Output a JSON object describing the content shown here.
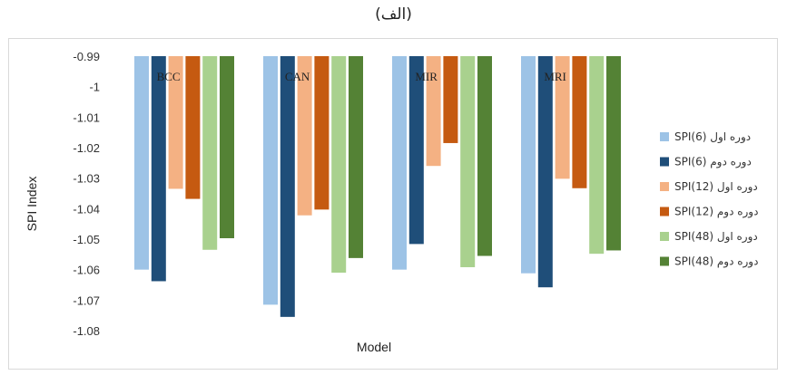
{
  "caption": "(الف)",
  "chart_data": {
    "type": "bar",
    "title": "",
    "xlabel": "Model",
    "ylabel": "SPI Index",
    "ylim": [
      -1.08,
      -0.99
    ],
    "yticks": [
      -0.99,
      -1,
      -1.01,
      -1.02,
      -1.03,
      -1.04,
      -1.05,
      -1.06,
      -1.07,
      -1.08
    ],
    "ytick_labels": [
      "-0.99",
      "-1",
      "-1.01",
      "-1.02",
      "-1.03",
      "-1.04",
      "-1.05",
      "-1.06",
      "-1.07",
      "-1.08"
    ],
    "grid": false,
    "legend_position": "right",
    "categories": [
      "BCC",
      "CAN",
      "MIR",
      "MRI"
    ],
    "series": [
      {
        "name": "SPI(6) دوره اول",
        "color": "#9dc3e6",
        "values": [
          -1.06,
          -1.0715,
          -1.06,
          -1.0612
        ]
      },
      {
        "name": "SPI(6) دوره دوم",
        "color": "#1f4e79",
        "values": [
          -1.0638,
          -1.0755,
          -1.0516,
          -1.0658
        ]
      },
      {
        "name": "SPI(12) دوره اول",
        "color": "#f4b183",
        "values": [
          -1.0335,
          -1.0422,
          -1.026,
          -1.0302
        ]
      },
      {
        "name": "SPI(12) دوره دوم",
        "color": "#c55a11",
        "values": [
          -1.0368,
          -1.0403,
          -1.0185,
          -1.0333
        ]
      },
      {
        "name": "SPI(48) دوره اول",
        "color": "#a9d18e",
        "values": [
          -1.0535,
          -1.061,
          -1.0592,
          -1.0548
        ]
      },
      {
        "name": "SPI(48) دوره دوم",
        "color": "#548235",
        "values": [
          -1.0497,
          -1.0562,
          -1.0555,
          -1.0537
        ]
      }
    ]
  }
}
